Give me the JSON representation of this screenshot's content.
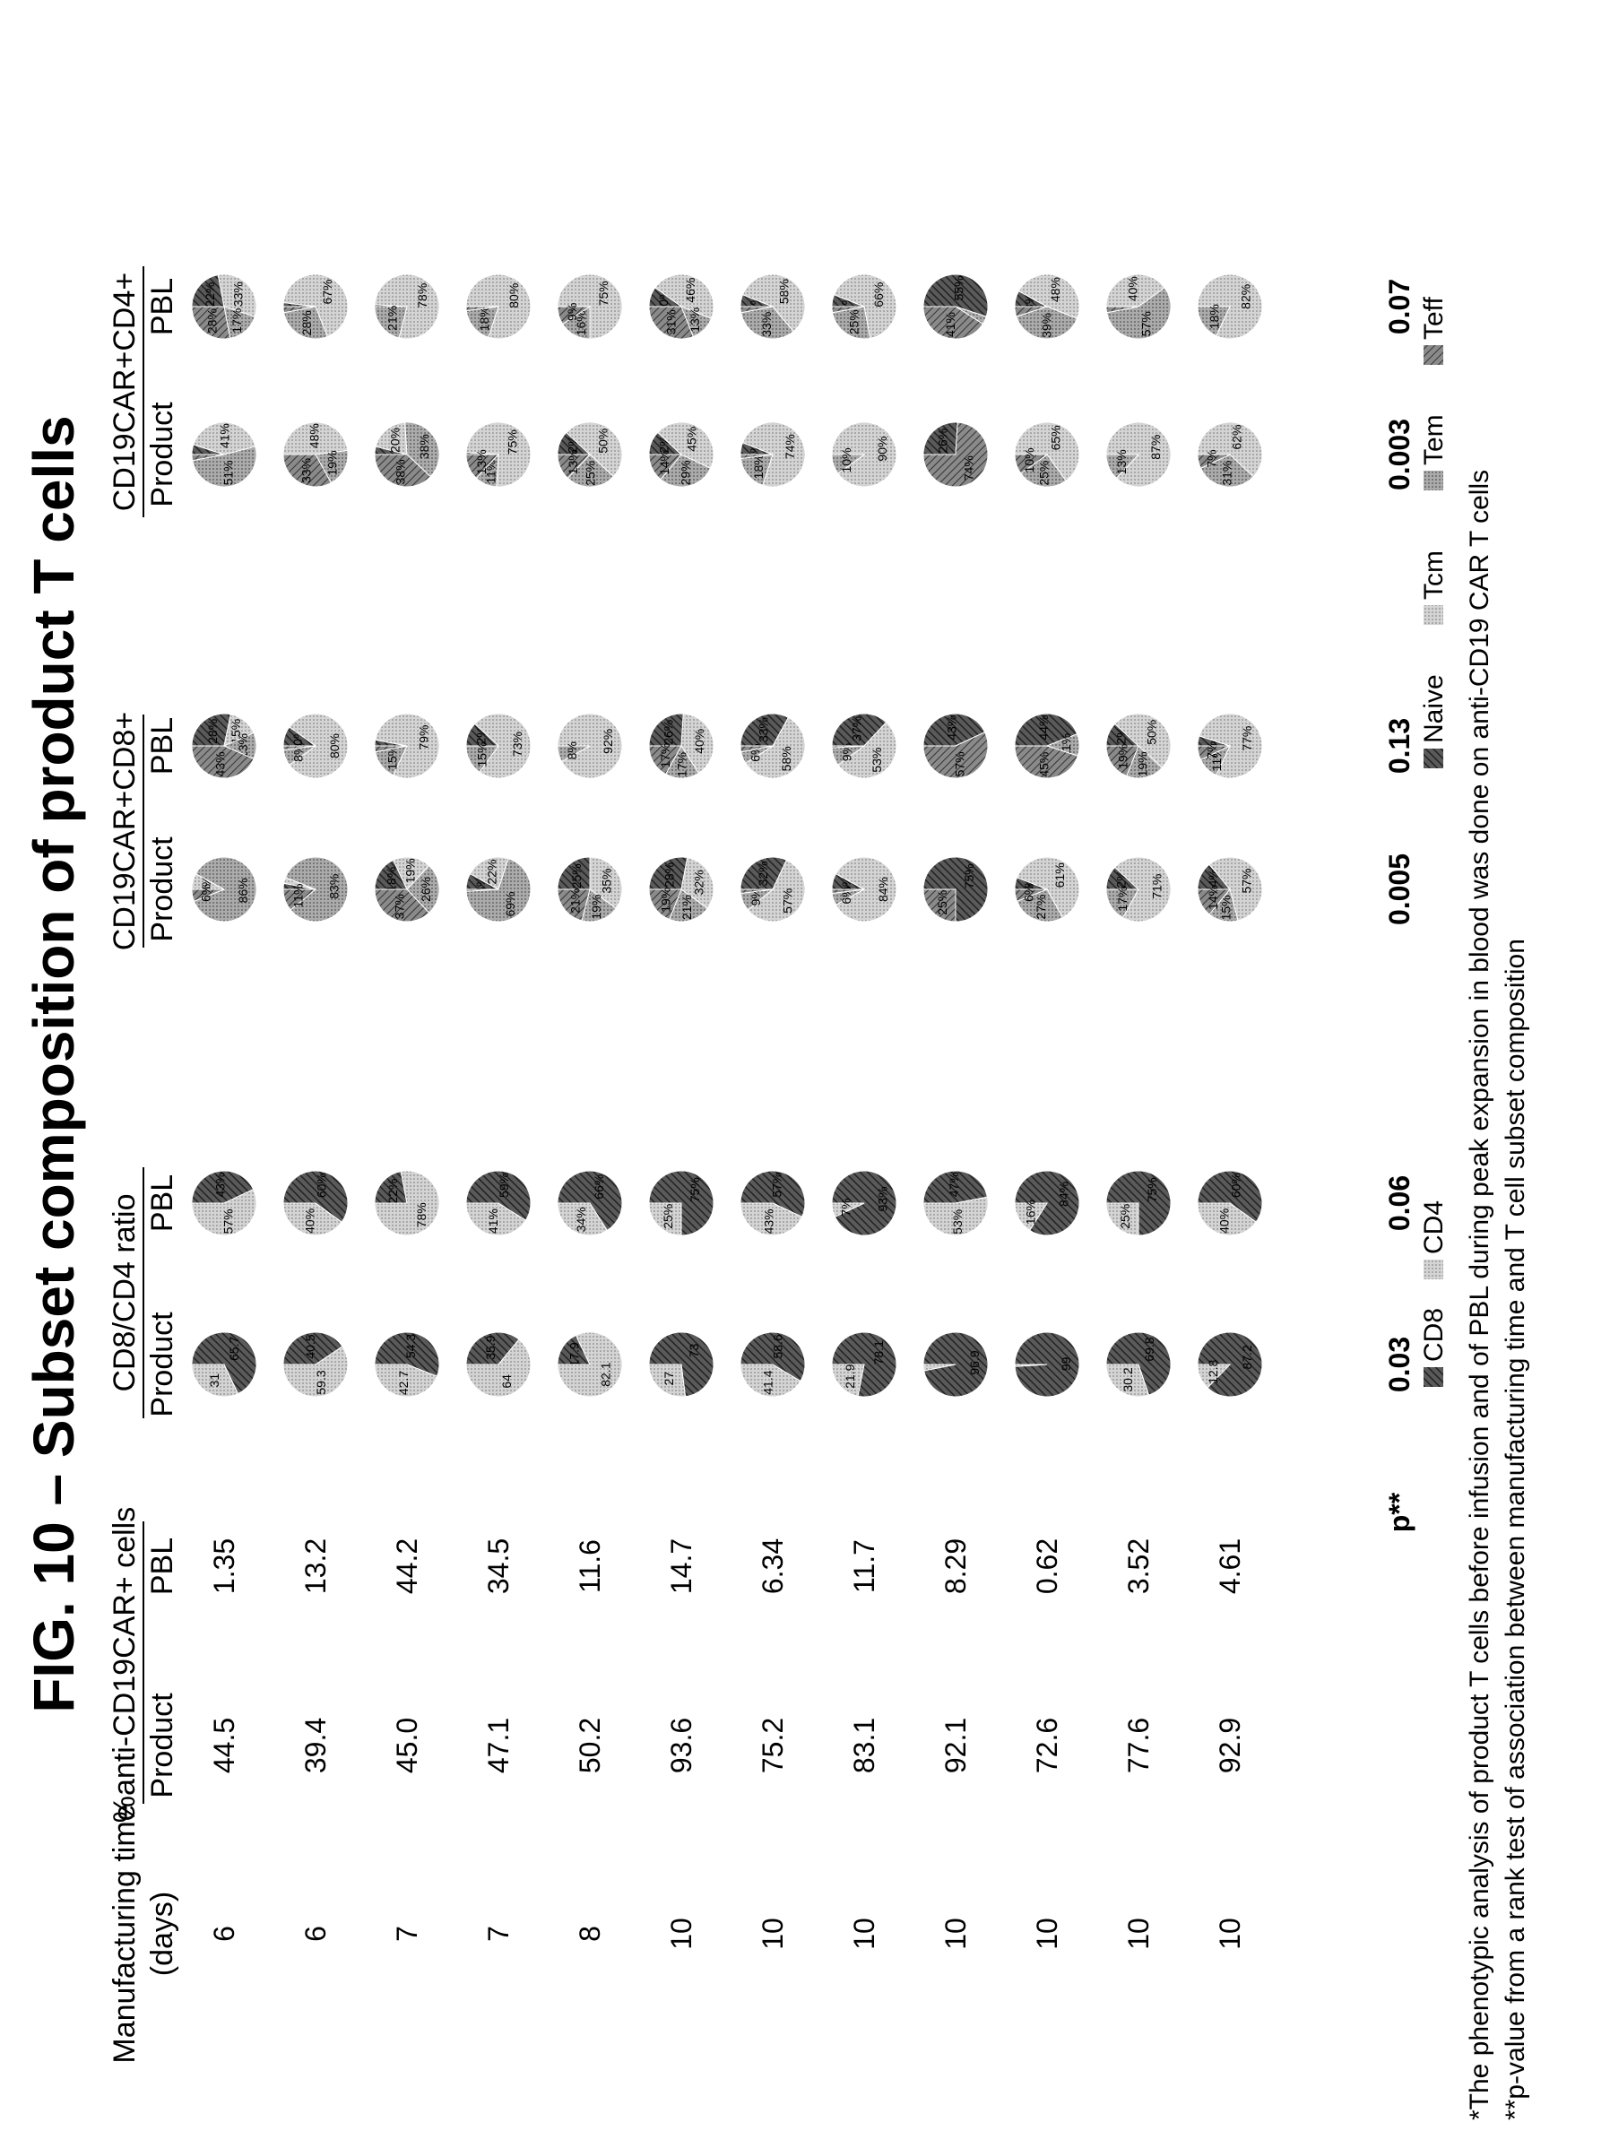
{
  "title": "FIG. 10 – Subset composition of product T cells",
  "headers": {
    "mfg_time_line1": "Manufacturing time",
    "mfg_time_line2": "(days)",
    "pct_group": "%anti-CD19CAR+ cells",
    "ratio_group": "CD8/CD4 ratio",
    "cd8_group": "CD19CAR+CD8+",
    "cd4_group": "CD19CAR+CD4+",
    "product": "Product",
    "pbl": "PBL"
  },
  "p_label": "p**",
  "p_values": {
    "ratio_product": "0.03",
    "ratio_pbl": "0.06",
    "cd8_product": "0.005",
    "cd8_pbl": "0.13",
    "cd4_product": "0.003",
    "cd4_pbl": "0.07"
  },
  "legend": {
    "cd8": "CD8",
    "cd4": "CD4",
    "naive": "Naive",
    "tcm": "Tcm",
    "tem": "Tem",
    "teff": "Teff"
  },
  "footnotes": [
    "*The phenotypic analysis of product T cells before infusion and of PBL during peak expansion in blood was done on anti-CD19 CAR T cells",
    "**p-value from a rank test of association between manufacturing time and T cell subset composition"
  ],
  "colors": {
    "cd8": "#4a4a4a",
    "cd4": "#c4c4c4",
    "naive": "#4a4a4a",
    "tcm": "#d8d8d8",
    "tem": "#b4b4b4",
    "teff": "#777777"
  },
  "chart_data": {
    "type": "table",
    "rows": [
      {
        "days": "6",
        "product_pct": "44.5",
        "pbl_pct": "1.35",
        "ratio_product": {
          "cd8": 65.7,
          "cd4": 31
        },
        "ratio_pbl": {
          "cd8": 43,
          "cd4": 57
        },
        "cd8_product": {
          "naive": 0,
          "tcm": 8,
          "tem": 86,
          "teff": 6
        },
        "cd8_pbl": {
          "naive": 28,
          "tcm": 15,
          "tem": 13,
          "teff": 43
        },
        "cd4_product": {
          "naive": 5,
          "tcm": 41,
          "tem": 51,
          "teff": 3
        },
        "cd4_pbl": {
          "naive": 22,
          "tcm": 33,
          "tem": 17,
          "teff": 28
        }
      },
      {
        "days": "6",
        "product_pct": "39.4",
        "pbl_pct": "13.2",
        "ratio_product": {
          "cd8": 40.5,
          "cd4": 59.3
        },
        "ratio_pbl": {
          "cd8": 60,
          "cd4": 40
        },
        "cd8_product": {
          "naive": 3,
          "tcm": 3,
          "tem": 83,
          "teff": 11
        },
        "cd8_pbl": {
          "naive": 10,
          "tcm": 80,
          "tem": 8,
          "teff": 2
        },
        "cd4_product": {
          "naive": 0,
          "tcm": 48,
          "tem": 19,
          "teff": 33
        },
        "cd4_pbl": {
          "naive": 2,
          "tcm": 67,
          "tem": 28,
          "teff": 3
        }
      },
      {
        "days": "7",
        "product_pct": "45.0",
        "pbl_pct": "44.2",
        "ratio_product": {
          "cd8": 54.3,
          "cd4": 42.7
        },
        "ratio_pbl": {
          "cd8": 22,
          "cd4": 78
        },
        "cd8_product": {
          "naive": 18,
          "tcm": 19,
          "tem": 26,
          "teff": 37
        },
        "cd8_pbl": {
          "naive": 3,
          "tcm": 79,
          "tem": 15,
          "teff": 3
        },
        "cd4_product": {
          "naive": 4,
          "tcm": 20,
          "tem": 38,
          "teff": 38
        },
        "cd4_pbl": {
          "naive": 1,
          "tcm": 78,
          "tem": 21,
          "teff": 0
        }
      },
      {
        "days": "7",
        "product_pct": "47.1",
        "pbl_pct": "34.5",
        "ratio_product": {
          "cd8": 35.9,
          "cd4": 64
        },
        "ratio_pbl": {
          "cd8": 59,
          "cd4": 41
        },
        "cd8_product": {
          "naive": 8,
          "tcm": 22,
          "tem": 69,
          "teff": 1
        },
        "cd8_pbl": {
          "naive": 12,
          "tcm": 73,
          "tem": 15,
          "teff": 0
        },
        "cd4_product": {
          "naive": 1,
          "tcm": 75,
          "tem": 11,
          "teff": 13
        },
        "cd4_pbl": {
          "naive": 0,
          "tcm": 80,
          "tem": 18,
          "teff": 2
        }
      },
      {
        "days": "8",
        "product_pct": "50.2",
        "pbl_pct": "11.6",
        "ratio_product": {
          "cd8": 17.9,
          "cd4": 82.1
        },
        "ratio_pbl": {
          "cd8": 66,
          "cd4": 34
        },
        "cd8_product": {
          "naive": 25,
          "tcm": 35,
          "tem": 19,
          "teff": 21
        },
        "cd8_pbl": {
          "naive": 0,
          "tcm": 92,
          "tem": 8,
          "teff": 0
        },
        "cd4_product": {
          "naive": 12,
          "tcm": 50,
          "tem": 25,
          "teff": 13
        },
        "cd4_pbl": {
          "naive": 0,
          "tcm": 75,
          "tem": 16,
          "teff": 9
        }
      },
      {
        "days": "10",
        "product_pct": "93.6",
        "pbl_pct": "14.7",
        "ratio_product": {
          "cd8": 73,
          "cd4": 27
        },
        "ratio_pbl": {
          "cd8": 75,
          "cd4": 25
        },
        "cd8_product": {
          "naive": 28,
          "tcm": 32,
          "tem": 21,
          "teff": 19
        },
        "cd8_pbl": {
          "naive": 26,
          "tcm": 40,
          "tem": 17,
          "teff": 17
        },
        "cd4_product": {
          "naive": 12,
          "tcm": 45,
          "tem": 29,
          "teff": 14
        },
        "cd4_pbl": {
          "naive": 10,
          "tcm": 46,
          "tem": 13,
          "teff": 31
        }
      },
      {
        "days": "10",
        "product_pct": "75.2",
        "pbl_pct": "6.34",
        "ratio_product": {
          "cd8": 58.6,
          "cd4": 41.4
        },
        "ratio_pbl": {
          "cd8": 57,
          "cd4": 43
        },
        "cd8_product": {
          "naive": 32,
          "tcm": 57,
          "tem": 9,
          "teff": 2
        },
        "cd8_pbl": {
          "naive": 33,
          "tcm": 58,
          "tem": 6,
          "teff": 3
        },
        "cd4_product": {
          "naive": 6,
          "tcm": 74,
          "tem": 18,
          "teff": 2
        },
        "cd4_pbl": {
          "naive": 6,
          "tcm": 58,
          "tem": 33,
          "teff": 3
        }
      },
      {
        "days": "10",
        "product_pct": "83.1",
        "pbl_pct": "11.7",
        "ratio_product": {
          "cd8": 78.1,
          "cd4": 21.9
        },
        "ratio_pbl": {
          "cd8": 93,
          "cd4": 7
        },
        "cd8_product": {
          "naive": 8,
          "tcm": 84,
          "tem": 6,
          "teff": 2
        },
        "cd8_pbl": {
          "naive": 37,
          "tcm": 53,
          "tem": 9,
          "teff": 1
        },
        "cd4_product": {
          "naive": 0,
          "tcm": 90,
          "tem": 10,
          "teff": 0
        },
        "cd4_pbl": {
          "naive": 6,
          "tcm": 66,
          "tem": 25,
          "teff": 3
        }
      },
      {
        "days": "10",
        "product_pct": "92.1",
        "pbl_pct": "8.29",
        "ratio_product": {
          "cd8": 96.9,
          "cd4": 3.1
        },
        "ratio_pbl": {
          "cd8": 47,
          "cd4": 53
        },
        "cd8_product": {
          "naive": 75,
          "tcm": 0,
          "tem": 0,
          "teff": 25
        },
        "cd8_pbl": {
          "naive": 43,
          "tcm": 0,
          "tem": 0,
          "teff": 57
        },
        "cd4_product": {
          "naive": 26,
          "tcm": 0,
          "tem": 0,
          "teff": 74
        },
        "cd4_pbl": {
          "naive": 55,
          "tcm": 0,
          "tem": 4,
          "teff": 41
        }
      },
      {
        "days": "10",
        "product_pct": "72.6",
        "pbl_pct": "0.62",
        "ratio_product": {
          "cd8": 99,
          "cd4": 1
        },
        "ratio_pbl": {
          "cd8": 84,
          "cd4": 16
        },
        "cd8_product": {
          "naive": 6,
          "tcm": 61,
          "tem": 27,
          "teff": 6
        },
        "cd8_pbl": {
          "naive": 44,
          "tcm": 0,
          "tem": 11,
          "teff": 45
        },
        "cd4_product": {
          "naive": 0,
          "tcm": 65,
          "tem": 25,
          "teff": 10
        },
        "cd4_pbl": {
          "naive": 8,
          "tcm": 48,
          "tem": 39,
          "teff": 5
        }
      },
      {
        "days": "10",
        "product_pct": "77.6",
        "pbl_pct": "3.52",
        "ratio_product": {
          "cd8": 69.8,
          "cd4": 30.2
        },
        "ratio_pbl": {
          "cd8": 75,
          "cd4": 25
        },
        "cd8_product": {
          "naive": 12,
          "tcm": 71,
          "tem": 17,
          "teff": 0
        },
        "cd8_pbl": {
          "naive": 12,
          "tcm": 50,
          "tem": 19,
          "teff": 19
        },
        "cd4_product": {
          "naive": 0,
          "tcm": 87,
          "tem": 13,
          "teff": 0
        },
        "cd4_pbl": {
          "naive": 0,
          "tcm": 40,
          "tem": 57,
          "teff": 3
        }
      },
      {
        "days": "10",
        "product_pct": "92.9",
        "pbl_pct": "4.61",
        "ratio_product": {
          "cd8": 87.2,
          "cd4": 12.8
        },
        "ratio_pbl": {
          "cd8": 60,
          "cd4": 40
        },
        "cd8_product": {
          "naive": 14,
          "tcm": 57,
          "tem": 15,
          "teff": 14
        },
        "cd8_pbl": {
          "naive": 5,
          "tcm": 77,
          "tem": 11,
          "teff": 7
        },
        "cd4_product": {
          "naive": 0,
          "tcm": 62,
          "tem": 31,
          "teff": 7
        },
        "cd4_pbl": {
          "naive": 0,
          "tcm": 82,
          "tem": 18,
          "teff": 0
        }
      }
    ]
  }
}
